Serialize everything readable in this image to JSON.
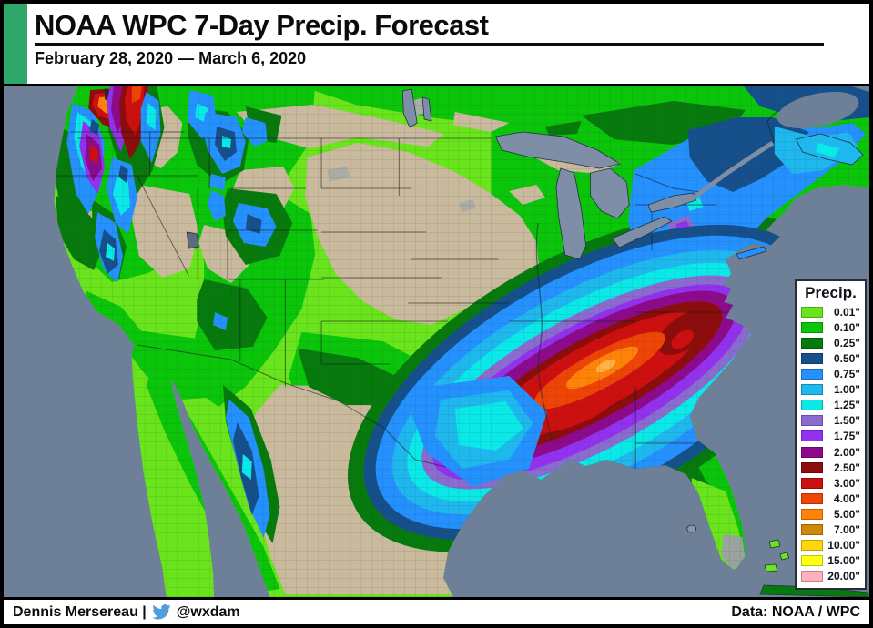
{
  "header": {
    "title": "NOAA WPC 7-Day Precip. Forecast",
    "date_range": "February 28, 2020 — March 6, 2020"
  },
  "legend": {
    "title": "Precip.",
    "entries": [
      {
        "label": "0.01\"",
        "color": "#69e41d"
      },
      {
        "label": "0.10\"",
        "color": "#0ac50a"
      },
      {
        "label": "0.25\"",
        "color": "#067a0c"
      },
      {
        "label": "0.50\"",
        "color": "#16508c"
      },
      {
        "label": "0.75\"",
        "color": "#2491ff"
      },
      {
        "label": "1.00\"",
        "color": "#1fb8ee"
      },
      {
        "label": "1.25\"",
        "color": "#0ae8e8"
      },
      {
        "label": "1.50\"",
        "color": "#8a6bcf"
      },
      {
        "label": "1.75\"",
        "color": "#9232ee"
      },
      {
        "label": "2.00\"",
        "color": "#8d0a8d"
      },
      {
        "label": "2.50\"",
        "color": "#8d0c0c"
      },
      {
        "label": "3.00\"",
        "color": "#cd0f0f"
      },
      {
        "label": "4.00\"",
        "color": "#ee4406"
      },
      {
        "label": "5.00\"",
        "color": "#ff8308"
      },
      {
        "label": "7.00\"",
        "color": "#cd8904"
      },
      {
        "label": "10.00\"",
        "color": "#ffd70a"
      },
      {
        "label": "15.00\"",
        "color": "#ffff14"
      },
      {
        "label": "20.00\"",
        "color": "#ffb0ba"
      }
    ]
  },
  "map": {
    "region": "Continental United States with southern Canada and northern Mexico",
    "type": "7-day quantitative precipitation forecast choropleth",
    "ocean_color": "#6d8097",
    "lake_color": "#7d8ea6",
    "dry_land_color": "#c9ba9d",
    "features": [
      "Heavy precipitation band (2.00–5.00+ in) stretching from northeast Texas across Arkansas and Tennessee into the Carolinas and Virginia, with a 4.00–5.00 in core over Tennessee",
      "Heavy coastal and mountain precipitation (2.50–5.00 in) over western Washington and the Cascades",
      "Moderate precipitation (0.50–1.75 in) across the Northeast and New England",
      "Mostly dry (under 0.01 in) across the Great Plains, upper Midwest, Great Basin and interior Mexico",
      "Mountain precipitation pockets (0.50–1.25 in) over the Sierra Nevada, Idaho and Colorado Rockies and Mexico's Sierra Madre"
    ]
  },
  "footer": {
    "credit": "Dennis Mersereau |",
    "twitter_handle": "@wxdam",
    "source": "Data: NOAA / WPC"
  },
  "colors": {
    "accent_green": "#2ea86a",
    "twitter_blue": "#4d9edb",
    "frame_black": "#000000"
  }
}
